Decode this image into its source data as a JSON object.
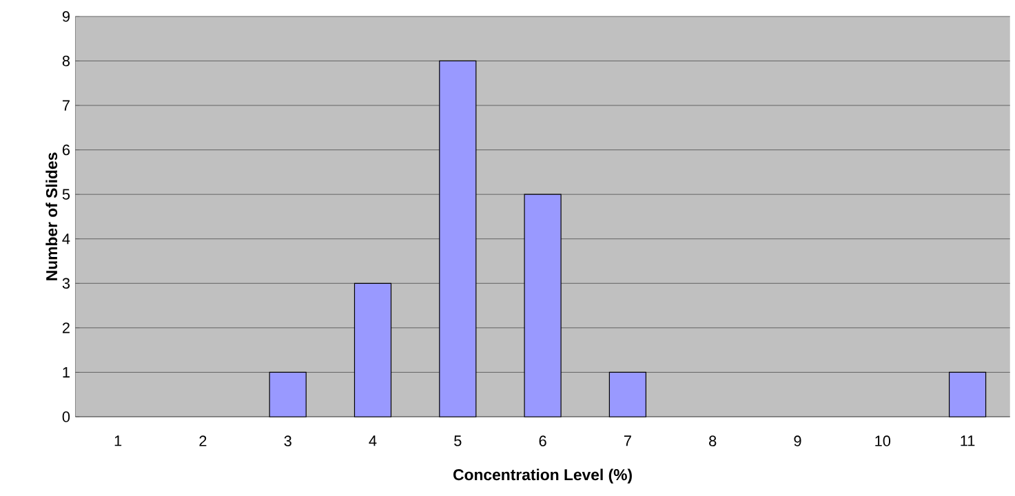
{
  "chart_data": {
    "type": "bar",
    "xlabel": "Concentration Level (%)",
    "ylabel": "Number of Slides",
    "categories": [
      "1",
      "2",
      "3",
      "4",
      "5",
      "6",
      "7",
      "8",
      "9",
      "10",
      "11"
    ],
    "values": [
      0,
      0,
      1,
      3,
      8,
      5,
      1,
      0,
      0,
      0,
      1
    ],
    "color": "#9999ff",
    "ylim": [
      0,
      9
    ],
    "yticks": [
      0,
      1,
      2,
      3,
      4,
      5,
      6,
      7,
      8,
      9
    ],
    "grid": "y"
  }
}
